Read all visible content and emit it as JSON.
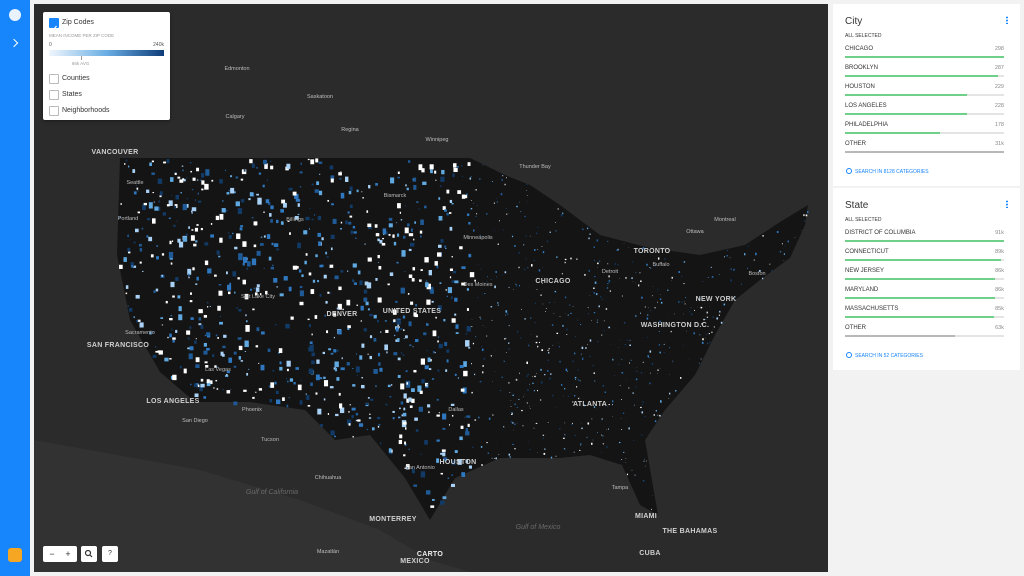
{
  "layers": {
    "items": [
      {
        "label": "Zip Codes",
        "checked": true
      },
      {
        "label": "Counties",
        "checked": false
      },
      {
        "label": "States",
        "checked": false
      },
      {
        "label": "Neighborhoods",
        "checked": false
      }
    ],
    "legend": {
      "title": "MEAN INCOME PER ZIP CODE",
      "min": 0,
      "max": {
        "value": 240000,
        "label": "240k"
      },
      "avg": {
        "value": 66000,
        "label": "66k AVG"
      }
    }
  },
  "widgets": [
    {
      "title": "City",
      "status": "ALL SELECTED",
      "categories": [
        "CHICAGO",
        "BROOKLYN",
        "HOUSTON",
        "LOS ANGELES",
        "PHILADELPHIA",
        "OTHER"
      ],
      "values": [
        298,
        287,
        229,
        228,
        178,
        31000
      ],
      "value_labels": [
        "298",
        "287",
        "229",
        "228",
        "178",
        "31k"
      ],
      "search": "SEARCH IN 8128 CATEGORIES"
    },
    {
      "title": "State",
      "status": "ALL SELECTED",
      "categories": [
        "DISTRICT OF COLUMBIA",
        "CONNECTICUT",
        "NEW JERSEY",
        "MARYLAND",
        "MASSACHUSETTS",
        "OTHER"
      ],
      "values": [
        91000,
        89000,
        86000,
        86000,
        85000,
        63000
      ],
      "value_labels": [
        "91k",
        "89k",
        "86k",
        "86k",
        "85k",
        "63k"
      ],
      "search": "SEARCH IN 52 CATEGORIES"
    }
  ],
  "map": {
    "labels": [
      "Edmonton",
      "Saskatoon",
      "Calgary",
      "Regina",
      "Winnipeg",
      "VANCOUVER",
      "Seattle",
      "Portland",
      "Thunder Bay",
      "Montreal",
      "Ottawa",
      "TORONTO",
      "Buffalo",
      "Boston",
      "NEW YORK",
      "WASHINGTON D.C.",
      "CHICAGO",
      "Detroit",
      "Des Moines",
      "Minneapolis",
      "DENVER",
      "UNITED STATES",
      "Salt Lake City",
      "SAN FRANCISCO",
      "Sacramento",
      "Las Vegas",
      "LOS ANGELES",
      "San Diego",
      "Phoenix",
      "Tucson",
      "Dallas",
      "HOUSTON",
      "San Antonio",
      "ATLANTA",
      "Tampa",
      "MIAMI",
      "Gulf of California",
      "MONTERREY",
      "Gulf of Mexico",
      "MEXICO",
      "Mazatlán",
      "CUBA",
      "THE BAHAMAS",
      "Bismarck",
      "Billings",
      "Chihuahua"
    ],
    "attribution": "CARTO"
  },
  "controls": {
    "zoom_out": "−",
    "zoom_in": "+",
    "help": "?"
  }
}
